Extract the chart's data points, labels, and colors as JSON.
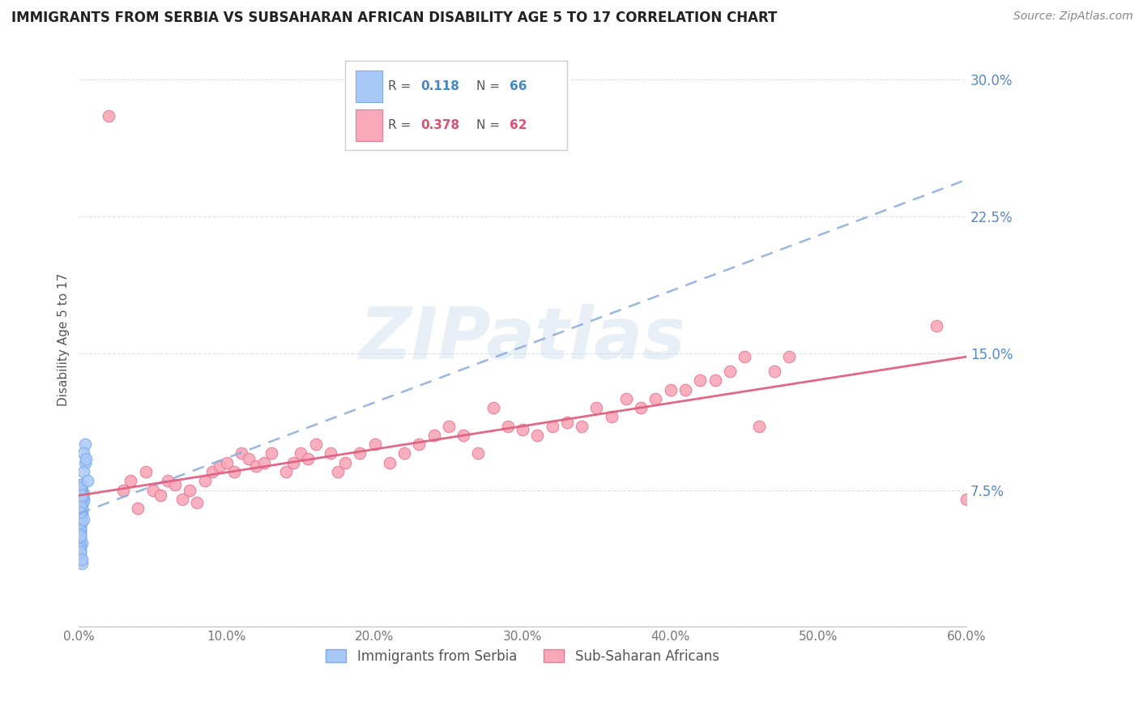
{
  "title": "IMMIGRANTS FROM SERBIA VS SUBSAHARAN AFRICAN DISABILITY AGE 5 TO 17 CORRELATION CHART",
  "source": "Source: ZipAtlas.com",
  "ylabel": "Disability Age 5 to 17",
  "xlim": [
    0.0,
    0.6
  ],
  "ylim": [
    0.0,
    0.315
  ],
  "xticks": [
    0.0,
    0.1,
    0.2,
    0.3,
    0.4,
    0.5,
    0.6
  ],
  "xtick_labels": [
    "0.0%",
    "10.0%",
    "20.0%",
    "30.0%",
    "40.0%",
    "50.0%",
    "60.0%"
  ],
  "ytick_right_vals": [
    0.0,
    0.075,
    0.15,
    0.225,
    0.3
  ],
  "ytick_right_labels": [
    "",
    "7.5%",
    "15.0%",
    "22.5%",
    "30.0%"
  ],
  "serbia_color": "#a8c8f8",
  "serbia_edge_color": "#7aaae8",
  "subsaharan_color": "#f8a8b8",
  "subsaharan_edge_color": "#e87898",
  "trend_serbia_color": "#88aadd",
  "trend_subsaharan_color": "#e06080",
  "R_serbia": 0.118,
  "N_serbia": 66,
  "R_subsaharan": 0.378,
  "N_subsaharan": 62,
  "serbia_x": [
    0.001,
    0.001,
    0.002,
    0.001,
    0.001,
    0.002,
    0.001,
    0.003,
    0.001,
    0.002,
    0.001,
    0.001,
    0.002,
    0.001,
    0.001,
    0.001,
    0.002,
    0.001,
    0.003,
    0.001,
    0.001,
    0.002,
    0.001,
    0.001,
    0.002,
    0.001,
    0.001,
    0.002,
    0.001,
    0.001,
    0.002,
    0.001,
    0.001,
    0.002,
    0.001,
    0.003,
    0.001,
    0.002,
    0.001,
    0.001,
    0.002,
    0.001,
    0.001,
    0.002,
    0.001,
    0.001,
    0.002,
    0.001,
    0.001,
    0.002,
    0.001,
    0.001,
    0.002,
    0.001,
    0.003,
    0.001,
    0.002,
    0.001,
    0.001,
    0.002,
    0.004,
    0.003,
    0.004,
    0.003,
    0.005,
    0.006
  ],
  "serbia_y": [
    0.075,
    0.078,
    0.075,
    0.072,
    0.07,
    0.068,
    0.065,
    0.07,
    0.062,
    0.078,
    0.058,
    0.055,
    0.07,
    0.074,
    0.06,
    0.065,
    0.071,
    0.068,
    0.073,
    0.058,
    0.05,
    0.063,
    0.048,
    0.068,
    0.062,
    0.056,
    0.053,
    0.073,
    0.064,
    0.052,
    0.067,
    0.049,
    0.066,
    0.07,
    0.051,
    0.069,
    0.054,
    0.072,
    0.076,
    0.061,
    0.046,
    0.055,
    0.044,
    0.071,
    0.05,
    0.042,
    0.065,
    0.04,
    0.06,
    0.058,
    0.038,
    0.057,
    0.035,
    0.067,
    0.059,
    0.043,
    0.072,
    0.063,
    0.041,
    0.037,
    0.1,
    0.095,
    0.09,
    0.085,
    0.092,
    0.08
  ],
  "subsaharan_x": [
    0.02,
    0.03,
    0.035,
    0.04,
    0.045,
    0.05,
    0.055,
    0.06,
    0.065,
    0.07,
    0.075,
    0.08,
    0.085,
    0.09,
    0.095,
    0.1,
    0.105,
    0.11,
    0.115,
    0.12,
    0.125,
    0.13,
    0.14,
    0.145,
    0.15,
    0.155,
    0.16,
    0.17,
    0.175,
    0.18,
    0.19,
    0.2,
    0.21,
    0.22,
    0.23,
    0.24,
    0.25,
    0.26,
    0.27,
    0.28,
    0.29,
    0.3,
    0.31,
    0.32,
    0.33,
    0.34,
    0.35,
    0.36,
    0.37,
    0.38,
    0.39,
    0.4,
    0.41,
    0.42,
    0.43,
    0.44,
    0.45,
    0.46,
    0.47,
    0.48,
    0.58,
    0.6
  ],
  "subsaharan_y": [
    0.28,
    0.075,
    0.08,
    0.065,
    0.085,
    0.075,
    0.072,
    0.08,
    0.078,
    0.07,
    0.075,
    0.068,
    0.08,
    0.085,
    0.088,
    0.09,
    0.085,
    0.095,
    0.092,
    0.088,
    0.09,
    0.095,
    0.085,
    0.09,
    0.095,
    0.092,
    0.1,
    0.095,
    0.085,
    0.09,
    0.095,
    0.1,
    0.09,
    0.095,
    0.1,
    0.105,
    0.11,
    0.105,
    0.095,
    0.12,
    0.11,
    0.108,
    0.105,
    0.11,
    0.112,
    0.11,
    0.12,
    0.115,
    0.125,
    0.12,
    0.125,
    0.13,
    0.13,
    0.135,
    0.135,
    0.14,
    0.148,
    0.11,
    0.14,
    0.148,
    0.165,
    0.07
  ],
  "watermark": "ZIPatlas",
  "background_color": "#ffffff",
  "grid_color": "#e0e0e8"
}
